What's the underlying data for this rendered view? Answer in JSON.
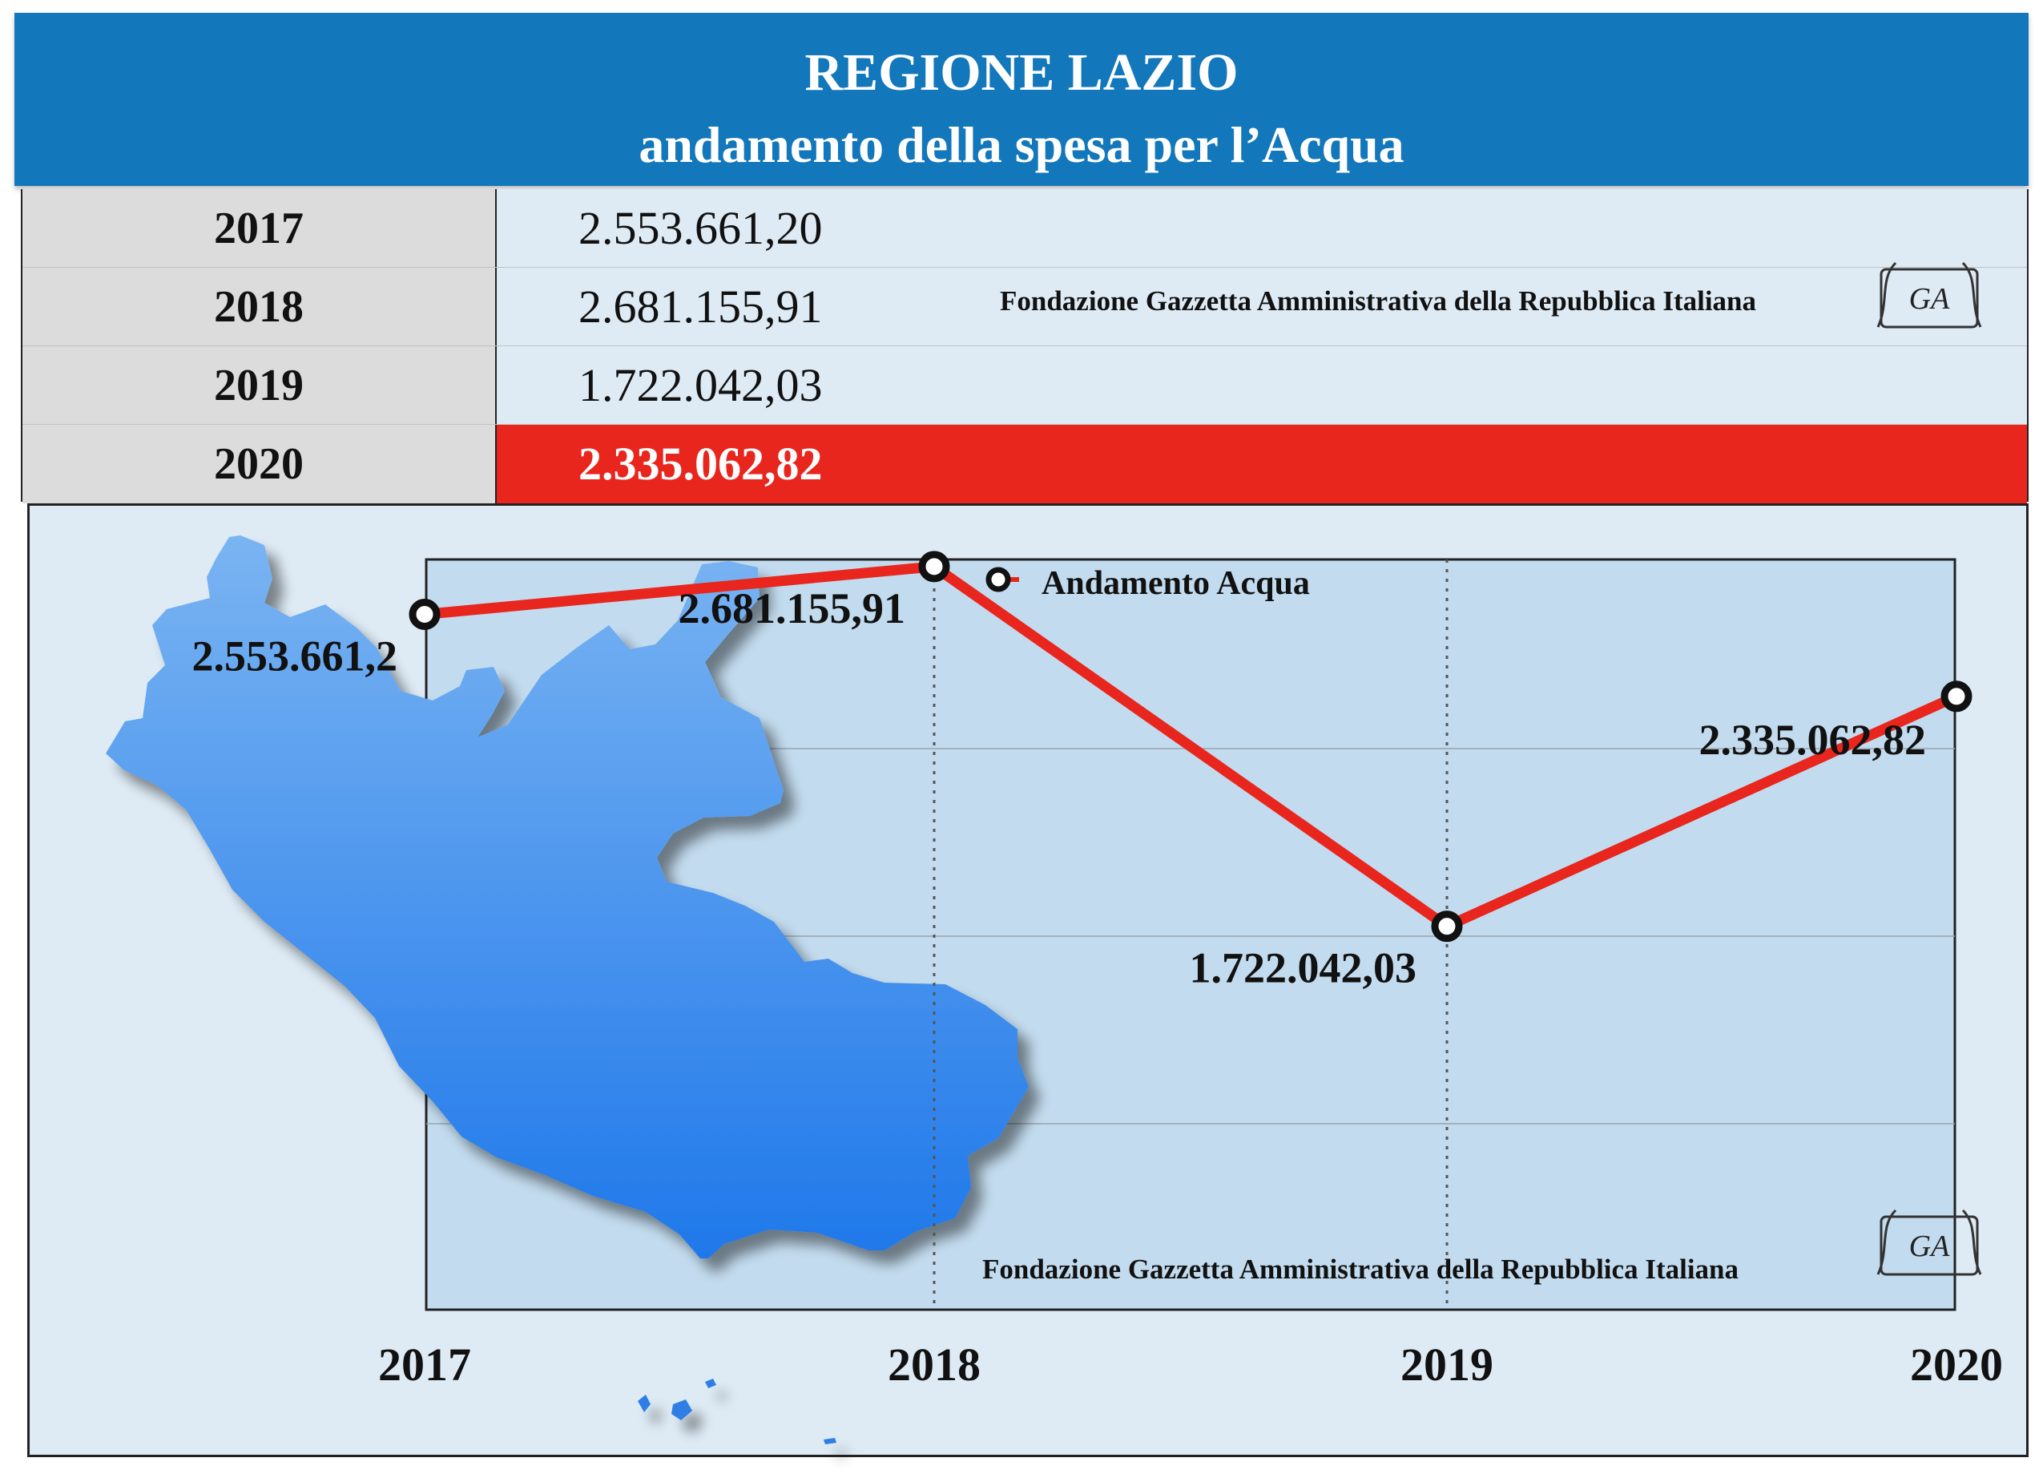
{
  "header": {
    "title": "REGIONE LAZIO",
    "subtitle": "andamento della spesa per l’Acqua"
  },
  "table": {
    "rows": [
      {
        "year": "2017",
        "value": "2.553.661,20"
      },
      {
        "year": "2018",
        "value": "2.681.155,91"
      },
      {
        "year": "2019",
        "value": "1.722.042,03"
      },
      {
        "year": "2020",
        "value": "2.335.062,82"
      }
    ],
    "highlight_year": "2020",
    "credit": "Fondazione Gazzetta Amministrativa della Repubblica Italiana"
  },
  "logo": {
    "text": "GA"
  },
  "colors": {
    "header_bg": "#1377bb",
    "highlight": "#e8261e",
    "line": "#e8261e",
    "map": "#4a8fe4",
    "panel_bg": "#deebf5",
    "plot_bg": "#c2dbee"
  },
  "chart_data": {
    "type": "line",
    "x": [
      "2017",
      "2018",
      "2019",
      "2020"
    ],
    "series": [
      {
        "name": "Andamento Acqua",
        "values": [
          2553661.2,
          2681155.91,
          1722042.03,
          2335062.82
        ],
        "labels": [
          "2.553.661,2",
          "2.681.155,91",
          "1.722.042,03",
          "2.335.062,82"
        ]
      }
    ],
    "ylim": [
      700000,
      2700000
    ],
    "grid": true,
    "legend_position": "top",
    "credit": "Fondazione Gazzetta Amministrativa della Repubblica Italiana"
  }
}
